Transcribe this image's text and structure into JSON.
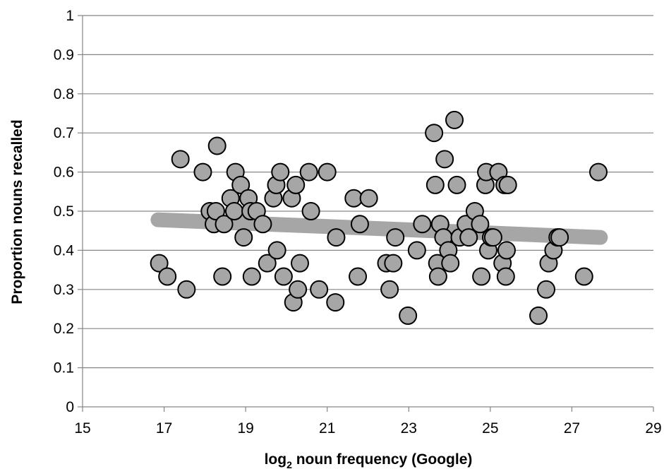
{
  "chart_data": {
    "type": "scatter",
    "title": "",
    "xlabel_pre": "log",
    "xlabel_sub": "2",
    "xlabel_post": " noun frequency (Google)",
    "ylabel": "Proportion nouns recalled",
    "xlim": [
      15,
      29
    ],
    "ylim": [
      0,
      1
    ],
    "x_ticks": [
      "15",
      "17",
      "19",
      "21",
      "23",
      "25",
      "27",
      "29"
    ],
    "y_ticks": [
      "0",
      "0.1",
      "0.2",
      "0.3",
      "0.4",
      "0.5",
      "0.6",
      "0.7",
      "0.8",
      "0.9",
      "1"
    ],
    "grid": "horizontal",
    "legend": "none",
    "colors": {
      "marker_fill": "#a6a6a6",
      "marker_edge": "#000000",
      "trend": "#a6a6a6",
      "grid": "#868686"
    },
    "trendline": {
      "x": [
        16.85,
        27.7
      ],
      "y": [
        0.478,
        0.433
      ]
    },
    "points": [
      {
        "x": 16.88,
        "y": 0.367
      },
      {
        "x": 17.08,
        "y": 0.333
      },
      {
        "x": 17.4,
        "y": 0.633
      },
      {
        "x": 17.55,
        "y": 0.3
      },
      {
        "x": 17.95,
        "y": 0.6
      },
      {
        "x": 18.12,
        "y": 0.5
      },
      {
        "x": 18.22,
        "y": 0.467
      },
      {
        "x": 18.27,
        "y": 0.5
      },
      {
        "x": 18.3,
        "y": 0.667
      },
      {
        "x": 18.43,
        "y": 0.333
      },
      {
        "x": 18.47,
        "y": 0.467
      },
      {
        "x": 18.63,
        "y": 0.533
      },
      {
        "x": 18.72,
        "y": 0.5
      },
      {
        "x": 18.75,
        "y": 0.6
      },
      {
        "x": 18.88,
        "y": 0.567
      },
      {
        "x": 18.95,
        "y": 0.433
      },
      {
        "x": 19.07,
        "y": 0.533
      },
      {
        "x": 19.12,
        "y": 0.5
      },
      {
        "x": 19.15,
        "y": 0.333
      },
      {
        "x": 19.27,
        "y": 0.5
      },
      {
        "x": 19.42,
        "y": 0.467
      },
      {
        "x": 19.53,
        "y": 0.367
      },
      {
        "x": 19.68,
        "y": 0.533
      },
      {
        "x": 19.75,
        "y": 0.567
      },
      {
        "x": 19.77,
        "y": 0.4
      },
      {
        "x": 19.85,
        "y": 0.6
      },
      {
        "x": 19.93,
        "y": 0.333
      },
      {
        "x": 20.13,
        "y": 0.533
      },
      {
        "x": 20.17,
        "y": 0.267
      },
      {
        "x": 20.23,
        "y": 0.567
      },
      {
        "x": 20.28,
        "y": 0.3
      },
      {
        "x": 20.33,
        "y": 0.367
      },
      {
        "x": 20.55,
        "y": 0.6
      },
      {
        "x": 20.6,
        "y": 0.5
      },
      {
        "x": 20.8,
        "y": 0.3
      },
      {
        "x": 21.0,
        "y": 0.6
      },
      {
        "x": 21.2,
        "y": 0.267
      },
      {
        "x": 21.22,
        "y": 0.433
      },
      {
        "x": 21.65,
        "y": 0.533
      },
      {
        "x": 21.75,
        "y": 0.333
      },
      {
        "x": 21.8,
        "y": 0.467
      },
      {
        "x": 22.02,
        "y": 0.533
      },
      {
        "x": 22.45,
        "y": 0.367
      },
      {
        "x": 22.53,
        "y": 0.3
      },
      {
        "x": 22.62,
        "y": 0.367
      },
      {
        "x": 22.67,
        "y": 0.433
      },
      {
        "x": 22.98,
        "y": 0.233
      },
      {
        "x": 23.2,
        "y": 0.4
      },
      {
        "x": 23.33,
        "y": 0.467
      },
      {
        "x": 23.62,
        "y": 0.7
      },
      {
        "x": 23.65,
        "y": 0.567
      },
      {
        "x": 23.7,
        "y": 0.367
      },
      {
        "x": 23.72,
        "y": 0.333
      },
      {
        "x": 23.77,
        "y": 0.467
      },
      {
        "x": 23.85,
        "y": 0.433
      },
      {
        "x": 23.88,
        "y": 0.633
      },
      {
        "x": 23.97,
        "y": 0.4
      },
      {
        "x": 24.02,
        "y": 0.367
      },
      {
        "x": 24.12,
        "y": 0.733
      },
      {
        "x": 24.18,
        "y": 0.567
      },
      {
        "x": 24.25,
        "y": 0.433
      },
      {
        "x": 24.4,
        "y": 0.467
      },
      {
        "x": 24.47,
        "y": 0.433
      },
      {
        "x": 24.62,
        "y": 0.5
      },
      {
        "x": 24.75,
        "y": 0.467
      },
      {
        "x": 24.78,
        "y": 0.333
      },
      {
        "x": 24.88,
        "y": 0.567
      },
      {
        "x": 24.9,
        "y": 0.6
      },
      {
        "x": 24.95,
        "y": 0.4
      },
      {
        "x": 25.02,
        "y": 0.433
      },
      {
        "x": 25.07,
        "y": 0.433
      },
      {
        "x": 25.2,
        "y": 0.6
      },
      {
        "x": 25.3,
        "y": 0.367
      },
      {
        "x": 25.35,
        "y": 0.567
      },
      {
        "x": 25.38,
        "y": 0.333
      },
      {
        "x": 25.4,
        "y": 0.4
      },
      {
        "x": 25.43,
        "y": 0.567
      },
      {
        "x": 26.18,
        "y": 0.233
      },
      {
        "x": 26.37,
        "y": 0.3
      },
      {
        "x": 26.43,
        "y": 0.367
      },
      {
        "x": 26.55,
        "y": 0.4
      },
      {
        "x": 26.65,
        "y": 0.433
      },
      {
        "x": 26.7,
        "y": 0.433
      },
      {
        "x": 27.3,
        "y": 0.333
      },
      {
        "x": 27.65,
        "y": 0.6
      }
    ]
  }
}
